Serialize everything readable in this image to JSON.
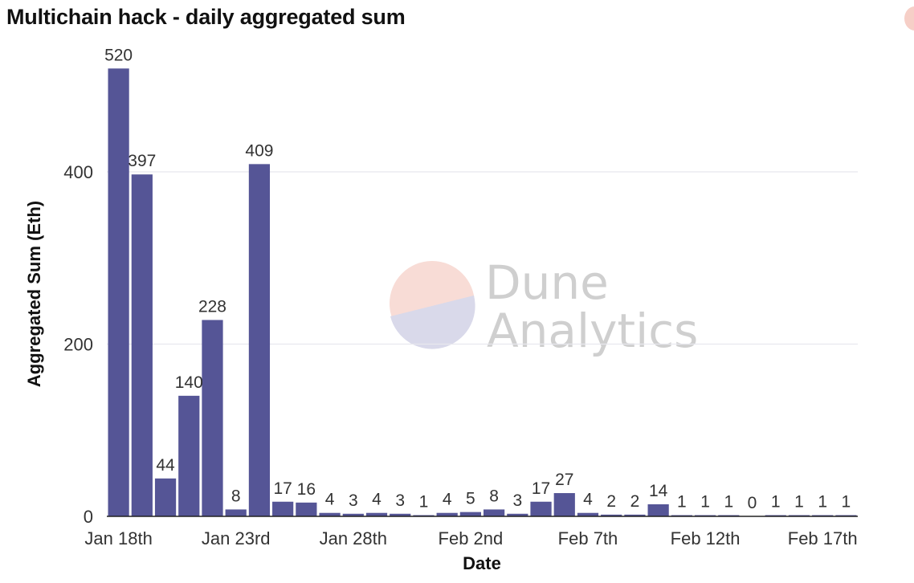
{
  "page": {
    "title": "Multichain hack - daily aggregated sum"
  },
  "watermark": {
    "line1": "Dune",
    "line2": "Analytics"
  },
  "colors": {
    "bar": "#555596",
    "grid": "#e8e8ee",
    "watermark_top": "#f8dcd6",
    "watermark_bottom": "#d9d9ea"
  },
  "chart_data": {
    "type": "bar",
    "title": "Multichain hack - daily aggregated sum",
    "xlabel": "Date",
    "ylabel": "Aggregated Sum (Eth)",
    "ylim": [
      0,
      560
    ],
    "y_ticks": [
      0,
      200,
      400
    ],
    "grid": true,
    "legend": "none",
    "x_tick_labels": [
      "Jan 18th",
      "Jan 23rd",
      "Jan 28th",
      "Feb 2nd",
      "Feb 7th",
      "Feb 12th",
      "Feb 17th"
    ],
    "categories": [
      "Jan 18th",
      "Jan 19th",
      "Jan 20th",
      "Jan 21st",
      "Jan 22nd",
      "Jan 23rd",
      "Jan 24th",
      "Jan 25th",
      "Jan 26th",
      "Jan 27th",
      "Jan 28th",
      "Jan 29th",
      "Jan 30th",
      "Jan 31st",
      "Feb 1st",
      "Feb 2nd",
      "Feb 3rd",
      "Feb 4th",
      "Feb 5th",
      "Feb 6th",
      "Feb 7th",
      "Feb 8th",
      "Feb 9th",
      "Feb 10th",
      "Feb 11th",
      "Feb 12th",
      "Feb 13th",
      "Feb 14th",
      "Feb 15th",
      "Feb 16th",
      "Feb 17th",
      "Feb 18th"
    ],
    "values": [
      520,
      397,
      44,
      140,
      228,
      8,
      409,
      17,
      16,
      4,
      3,
      4,
      3,
      1,
      4,
      5,
      8,
      3,
      17,
      27,
      4,
      2,
      2,
      14,
      1,
      1,
      1,
      0,
      1,
      1,
      1,
      1
    ]
  }
}
